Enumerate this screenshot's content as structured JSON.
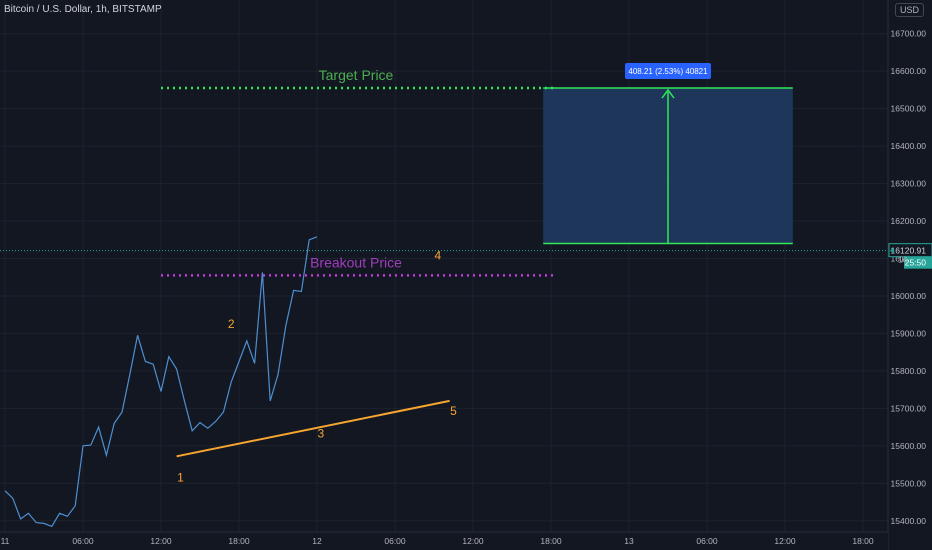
{
  "symbol_title": "Bitcoin / U.S. Dollar, 1h, BITSTAMP",
  "currency": "USD",
  "chart_data": {
    "type": "line",
    "title": "Bitcoin / U.S. Dollar, 1h, BITSTAMP",
    "xlabel": "",
    "ylabel": "",
    "ylim": [
      15370,
      16790
    ],
    "y_ticks": [
      15400,
      15500,
      15600,
      15700,
      15800,
      15900,
      16000,
      16100,
      16200,
      16300,
      16400,
      16500,
      16600,
      16700
    ],
    "y_tick_labels": [
      "15400.00",
      "15500.00",
      "15600.00",
      "15700.00",
      "15800.00",
      "15900.00",
      "16000.00",
      "16100.00",
      "16200.00",
      "16300.00",
      "16400.00",
      "16500.00",
      "16600.00",
      "16700.00"
    ],
    "x_ticks": [
      0,
      10,
      20,
      30,
      40,
      50,
      60,
      70,
      80,
      90,
      100,
      110
    ],
    "x_tick_labels": [
      "11",
      "06:00",
      "12:00",
      "18:00",
      "12",
      "06:00",
      "12:00",
      "18:00",
      "13",
      "06:00",
      "12:00",
      "18:00"
    ],
    "xlim": [
      0,
      116
    ],
    "grid": true,
    "series": [
      {
        "color": "#4d8fd1",
        "x": [
          0,
          1,
          2,
          3,
          4,
          5,
          6,
          7,
          8,
          9,
          10,
          11,
          12,
          13,
          14,
          15,
          16,
          17,
          18,
          19,
          20,
          21,
          22,
          23,
          24,
          25,
          26,
          27,
          28,
          29,
          30,
          31,
          32,
          33,
          34,
          35,
          36,
          37,
          38,
          39,
          40,
          41,
          42,
          43,
          44,
          45,
          46,
          47,
          48,
          49,
          50,
          51,
          52,
          53,
          54,
          55,
          56,
          57,
          58,
          59,
          60,
          61,
          62,
          63,
          64,
          65,
          66,
          67,
          68,
          69
        ],
        "y": [
          15480,
          15460,
          15405,
          15420,
          15395,
          15393,
          15385,
          15420,
          15412,
          15440,
          15600,
          15602,
          15650,
          15575,
          15660,
          15690,
          15790,
          15895,
          15825,
          15818,
          15745,
          15838,
          15805,
          15720,
          15640,
          15662,
          15647,
          15665,
          15690,
          15770,
          15825,
          15880,
          15820,
          16063,
          15720,
          15790,
          15920,
          16015,
          16012,
          16150,
          16158,
          16120,
          16122,
          16122,
          16122,
          16122,
          16122,
          16122,
          16122,
          16122,
          16122,
          16122,
          16122,
          16122,
          16122,
          16122,
          16122,
          16122,
          16122,
          16122,
          16122,
          16122,
          16122,
          16122,
          16122,
          16122,
          16122,
          16122,
          16122,
          16122
        ]
      }
    ],
    "visible_points": 41,
    "target_price": 16555,
    "breakout_price": 16055,
    "target_label": "Target Price",
    "breakout_label": "Breakout Price",
    "trendline": {
      "x": [
        22,
        57
      ],
      "y": [
        15572,
        15720
      ],
      "color": "#f7a531"
    },
    "wave_labels": [
      {
        "text": "1",
        "x": 22.5,
        "y": 15505
      },
      {
        "text": "2",
        "x": 29,
        "y": 15915
      },
      {
        "text": "3",
        "x": 40.5,
        "y": 15622
      },
      {
        "text": "4",
        "x": 55.5,
        "y": 16098
      },
      {
        "text": "5",
        "x": 57.5,
        "y": 15682
      }
    ],
    "measure_box": {
      "x_start": 69,
      "x_end": 101,
      "y_low": 16140,
      "y_high": 16555,
      "label": "408.21 (2.53%) 40821",
      "box_color": "#1f3a5f",
      "line_color": "#2ee85a"
    },
    "last_price": 16120.91,
    "last_price_label": "16120.91",
    "countdown_label": "25:50",
    "partial_price_label": "16"
  }
}
